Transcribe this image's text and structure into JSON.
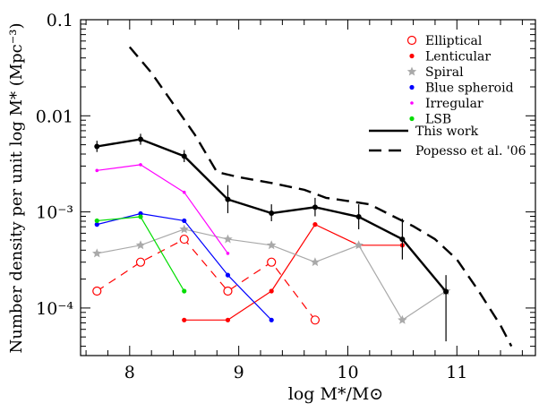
{
  "chart_data": {
    "type": "line",
    "xlabel": "log M*/M⊙",
    "ylabel": "Number density per unit log M* (Mpc⁻³)",
    "x_scale": "linear",
    "y_scale": "log",
    "xlim": [
      7.55,
      11.72
    ],
    "ylim": [
      3.2e-05,
      0.1
    ],
    "x_ticks": [
      8,
      9,
      10,
      11
    ],
    "x_tick_labels": [
      "8",
      "9",
      "10",
      "11"
    ],
    "y_tick_labels": [
      "0.1",
      "0.01",
      "10⁻³",
      "10⁻⁴"
    ],
    "legend_position": "top-right",
    "grid": false,
    "series": [
      {
        "name": "Elliptical",
        "color": "#ff0000",
        "marker": "open-circle",
        "line": "dashed",
        "x": [
          7.7,
          8.1,
          8.5,
          8.9,
          9.3,
          9.7
        ],
        "y": [
          0.00015,
          0.0003,
          0.00052,
          0.00015,
          0.0003,
          7.5e-05
        ]
      },
      {
        "name": "Lenticular",
        "color": "#ff0000",
        "marker": "dot",
        "line": "solid",
        "x": [
          8.5,
          8.9,
          9.3,
          9.7,
          10.1,
          10.5
        ],
        "y": [
          7.5e-05,
          7.5e-05,
          0.00015,
          0.00074,
          0.00045,
          0.00045
        ]
      },
      {
        "name": "Spiral",
        "color": "#a9a9a9",
        "marker": "star",
        "line": "solid",
        "x": [
          7.7,
          8.1,
          8.5,
          8.9,
          9.3,
          9.7,
          10.1,
          10.5,
          10.9
        ],
        "y": [
          0.00037,
          0.00045,
          0.00066,
          0.00052,
          0.00045,
          0.0003,
          0.00045,
          7.5e-05,
          0.00015
        ]
      },
      {
        "name": "Blue spheroid",
        "color": "#0000ff",
        "marker": "dot",
        "line": "solid",
        "x": [
          7.7,
          8.1,
          8.5,
          8.9,
          9.3
        ],
        "y": [
          0.00074,
          0.00096,
          0.00081,
          0.00022,
          7.5e-05
        ]
      },
      {
        "name": "Irregular",
        "color": "#ff00ff",
        "marker": "dot",
        "line": "solid",
        "x": [
          7.7,
          8.1,
          8.5,
          8.9
        ],
        "y": [
          0.0027,
          0.0031,
          0.0016,
          0.00037
        ]
      },
      {
        "name": "LSB",
        "color": "#00dd00",
        "marker": "dot",
        "line": "solid",
        "x": [
          7.7,
          8.1,
          8.5
        ],
        "y": [
          0.00081,
          0.00089,
          0.00015
        ]
      },
      {
        "name": "This work",
        "color": "#000000",
        "marker": "dot-errorbar",
        "line": "thick-solid",
        "x": [
          7.7,
          8.1,
          8.5,
          8.9,
          9.3,
          9.7,
          10.1,
          10.5,
          10.9
        ],
        "y": [
          0.0048,
          0.0057,
          0.0038,
          0.00135,
          0.00097,
          0.00112,
          0.00089,
          0.00052,
          0.000148
        ],
        "y_low": [
          0.0042,
          0.005,
          0.0033,
          0.00097,
          0.0008,
          0.0009,
          0.00066,
          0.00032,
          4.5e-05
        ],
        "y_high": [
          0.0055,
          0.0065,
          0.0044,
          0.0019,
          0.0012,
          0.0014,
          0.0012,
          0.00085,
          0.00022
        ]
      },
      {
        "name": "Popesso et al. '06",
        "color": "#000000",
        "marker": "none",
        "line": "thick-dashed",
        "x": [
          8.0,
          8.2,
          8.4,
          8.6,
          8.8,
          9.0,
          9.3,
          9.6,
          9.8,
          10.0,
          10.2,
          10.4,
          10.6,
          10.8,
          11.0,
          11.2,
          11.4,
          11.5
        ],
        "y": [
          0.052,
          0.028,
          0.0133,
          0.0063,
          0.0026,
          0.0023,
          0.002,
          0.0017,
          0.0014,
          0.0013,
          0.0012,
          0.00092,
          0.00071,
          0.00052,
          0.00032,
          0.00015,
          6.6e-05,
          4e-05
        ]
      }
    ]
  }
}
